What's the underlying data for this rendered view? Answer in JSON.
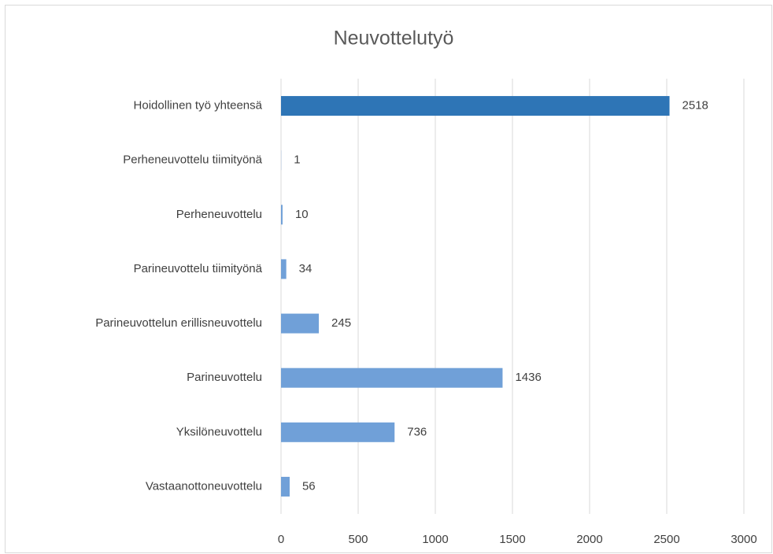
{
  "chart_data": {
    "type": "barh",
    "title": "Neuvottelutyö",
    "categories": [
      "Hoidollinen työ yhteensä",
      "Perheneuvottelu tiimityönä",
      "Perheneuvottelu",
      "Parineuvottelu tiimityönä",
      "Parineuvottelun erillisneuvottelu",
      "Parineuvottelu",
      "Yksilöneuvottelu",
      "Vastaanottoneuvottelu"
    ],
    "values": [
      2518,
      1,
      10,
      34,
      245,
      1436,
      736,
      56
    ],
    "colors": [
      "#2e75b6",
      "#70a0d8",
      "#70a0d8",
      "#70a0d8",
      "#70a0d8",
      "#70a0d8",
      "#70a0d8",
      "#70a0d8"
    ],
    "xlim": [
      0,
      3000
    ],
    "xticks": [
      0,
      500,
      1000,
      1500,
      2000,
      2500,
      3000
    ],
    "grid": true
  }
}
